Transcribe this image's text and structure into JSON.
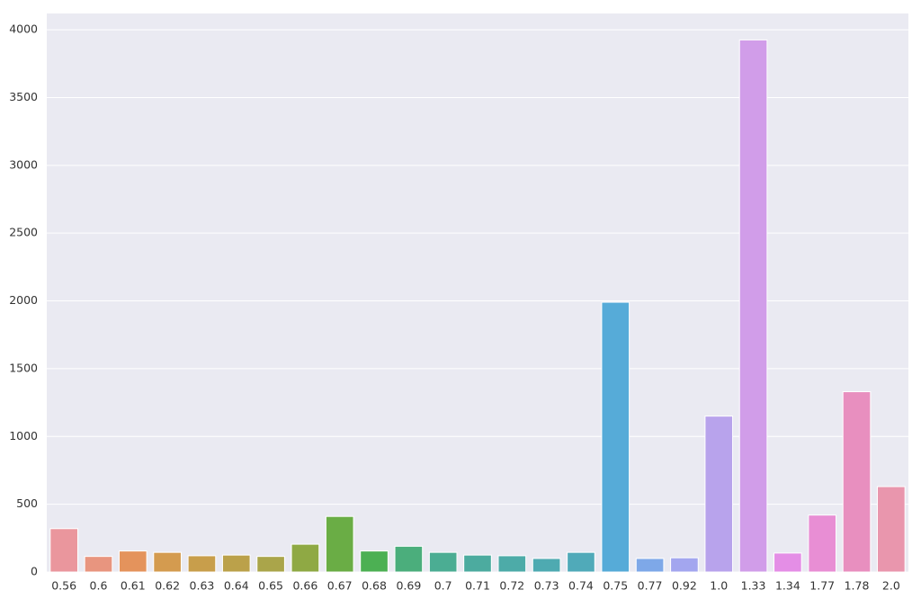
{
  "chart_data": {
    "type": "bar",
    "categories": [
      "0.56",
      "0.6",
      "0.61",
      "0.62",
      "0.63",
      "0.64",
      "0.65",
      "0.66",
      "0.67",
      "0.68",
      "0.69",
      "0.7",
      "0.71",
      "0.72",
      "0.73",
      "0.74",
      "0.75",
      "0.77",
      "0.92",
      "1.0",
      "1.33",
      "1.34",
      "1.77",
      "1.78",
      "2.0"
    ],
    "values": [
      320,
      115,
      155,
      145,
      120,
      125,
      115,
      205,
      410,
      155,
      190,
      145,
      125,
      120,
      100,
      145,
      1990,
      100,
      105,
      1150,
      3925,
      140,
      420,
      1330,
      630
    ],
    "colors": [
      "#ea969d",
      "#e8957f",
      "#e4935c",
      "#d49b4f",
      "#c89e4b",
      "#bba14a",
      "#aaa54a",
      "#8fa944",
      "#6aad45",
      "#4cb053",
      "#4bae7c",
      "#4bad93",
      "#4cab9f",
      "#4daba8",
      "#4eaab1",
      "#50aab9",
      "#56abd8",
      "#7ea8e8",
      "#a3a6ef",
      "#b8a3ec",
      "#d19de9",
      "#e48ee6",
      "#e88ed4",
      "#e88fbf",
      "#e996ad"
    ],
    "ylim": [
      0,
      4120
    ],
    "yticks": [
      0,
      500,
      1000,
      1500,
      2000,
      2500,
      3000,
      3500,
      4000
    ],
    "grid": true
  }
}
